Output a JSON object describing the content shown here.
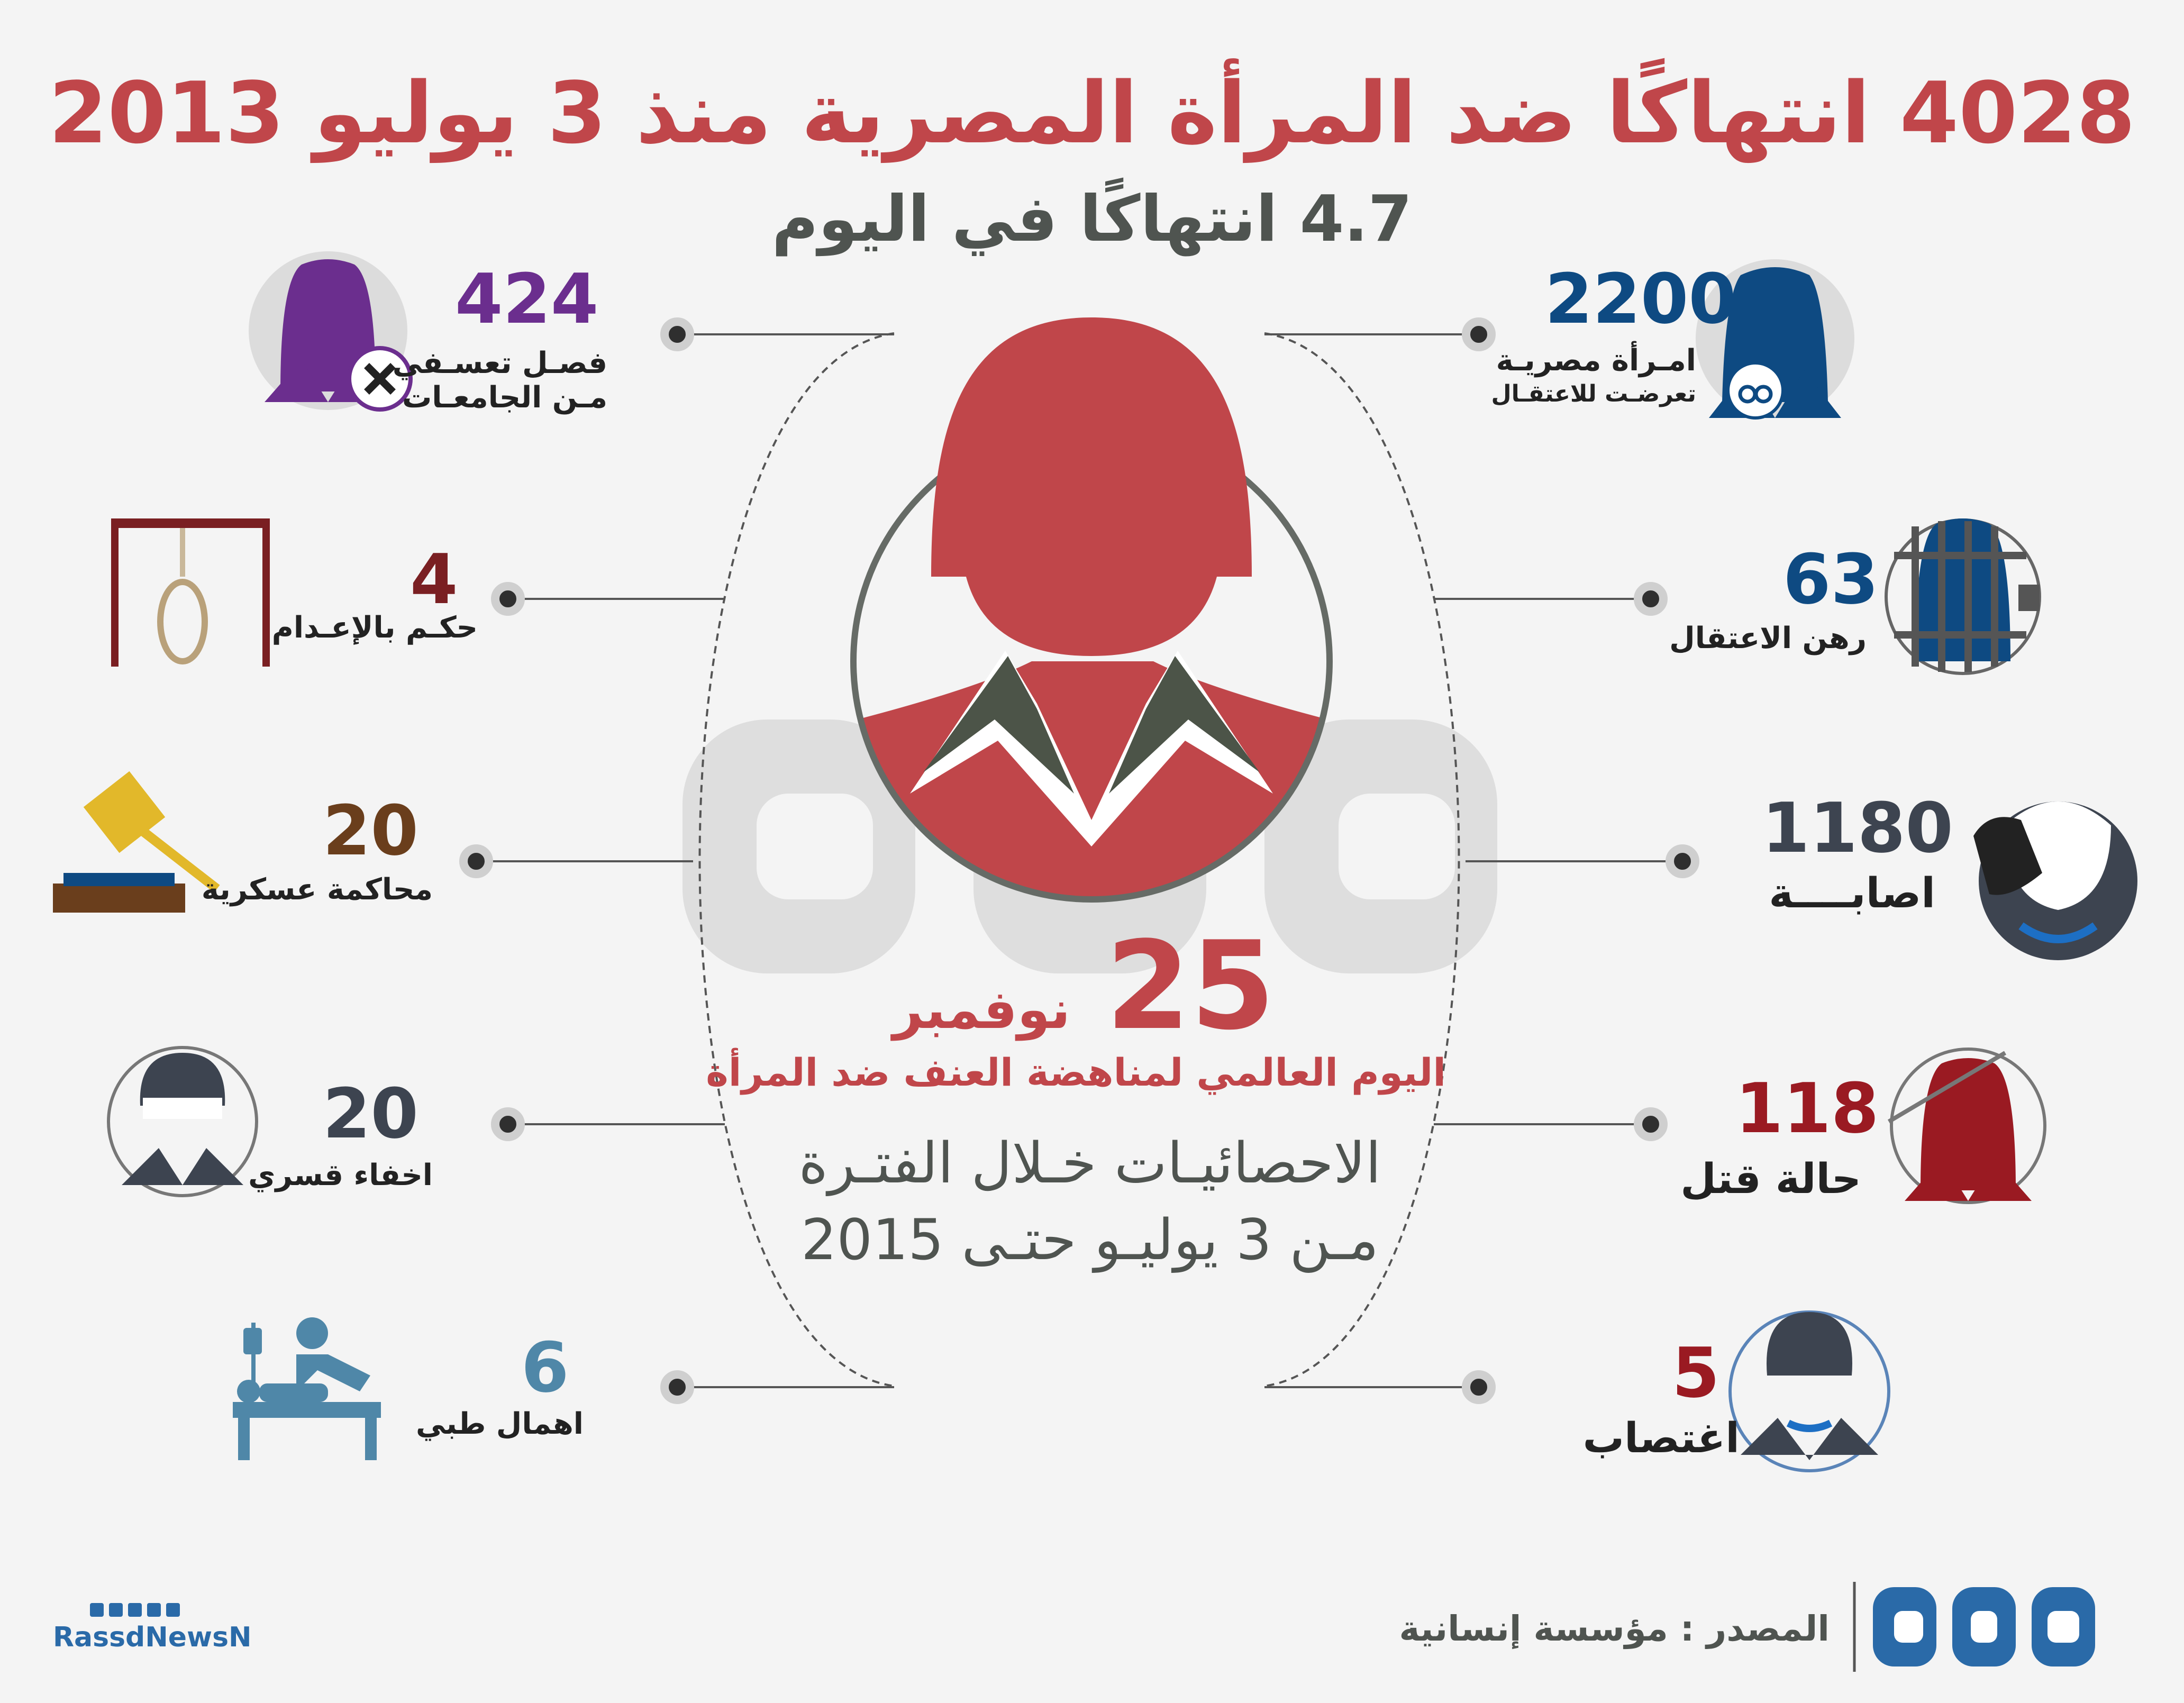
{
  "header": {
    "title": "4028 انتهاكًا ضد المرأة المصرية منذ 3 يوليو 2013",
    "subtitle": "4.7 انتهاكًا في اليوم"
  },
  "right_stats": [
    {
      "value": "2200",
      "label1": "امـرأة مصريـة",
      "label2": "تعرضـت للاعتقـال",
      "color": "#0e4a82"
    },
    {
      "value": "63",
      "label1": "رهن الاعتقال",
      "label2": "",
      "color": "#0e4a82"
    },
    {
      "value": "1180",
      "label1": "اصابــــة",
      "label2": "",
      "color": "#3d4450"
    },
    {
      "value": "118",
      "label1": "حالة قتل",
      "label2": "",
      "color": "#9a1a22"
    },
    {
      "value": "5",
      "label1": "اغتصاب",
      "label2": "",
      "color": "#9a1a22"
    }
  ],
  "left_stats": [
    {
      "value": "424",
      "label1": "فصـل تعسـفي",
      "label2": "مـن الجامعـات",
      "color": "#6b2e8e"
    },
    {
      "value": "4",
      "label1": "حكـم بالإعـدام",
      "label2": "",
      "color": "#7a1f22"
    },
    {
      "value": "20",
      "label1": "محاكمة عسكرية",
      "label2": "",
      "color": "#6a3e1c"
    },
    {
      "value": "20",
      "label1": "اخفاء قسري",
      "label2": "",
      "color": "#3d4450"
    },
    {
      "value": "6",
      "label1": "اهمال طبي",
      "label2": "",
      "color": "#4f87a8"
    }
  ],
  "center": {
    "day_number": "25",
    "month": "نوفمبر",
    "occasion": "اليوم العالمي لمناهضة العنف ضد المرأة",
    "period_line1": "الاحصائيـات خـلال الفتـرة",
    "period_line2": "مـن 3 يوليـو حتـى 2015"
  },
  "footer": {
    "source": "المصدر : مؤسسة إنسانية",
    "brand": "RassdNewsN",
    "social_icons": [
      "google-plus-icon",
      "instagram-icon",
      "youtube-icon",
      "twitter-icon",
      "facebook-icon"
    ]
  },
  "colors": {
    "accent_red": "#c0464a",
    "dark_gray": "#4f5450",
    "brand_blue": "#2a6aa8"
  }
}
